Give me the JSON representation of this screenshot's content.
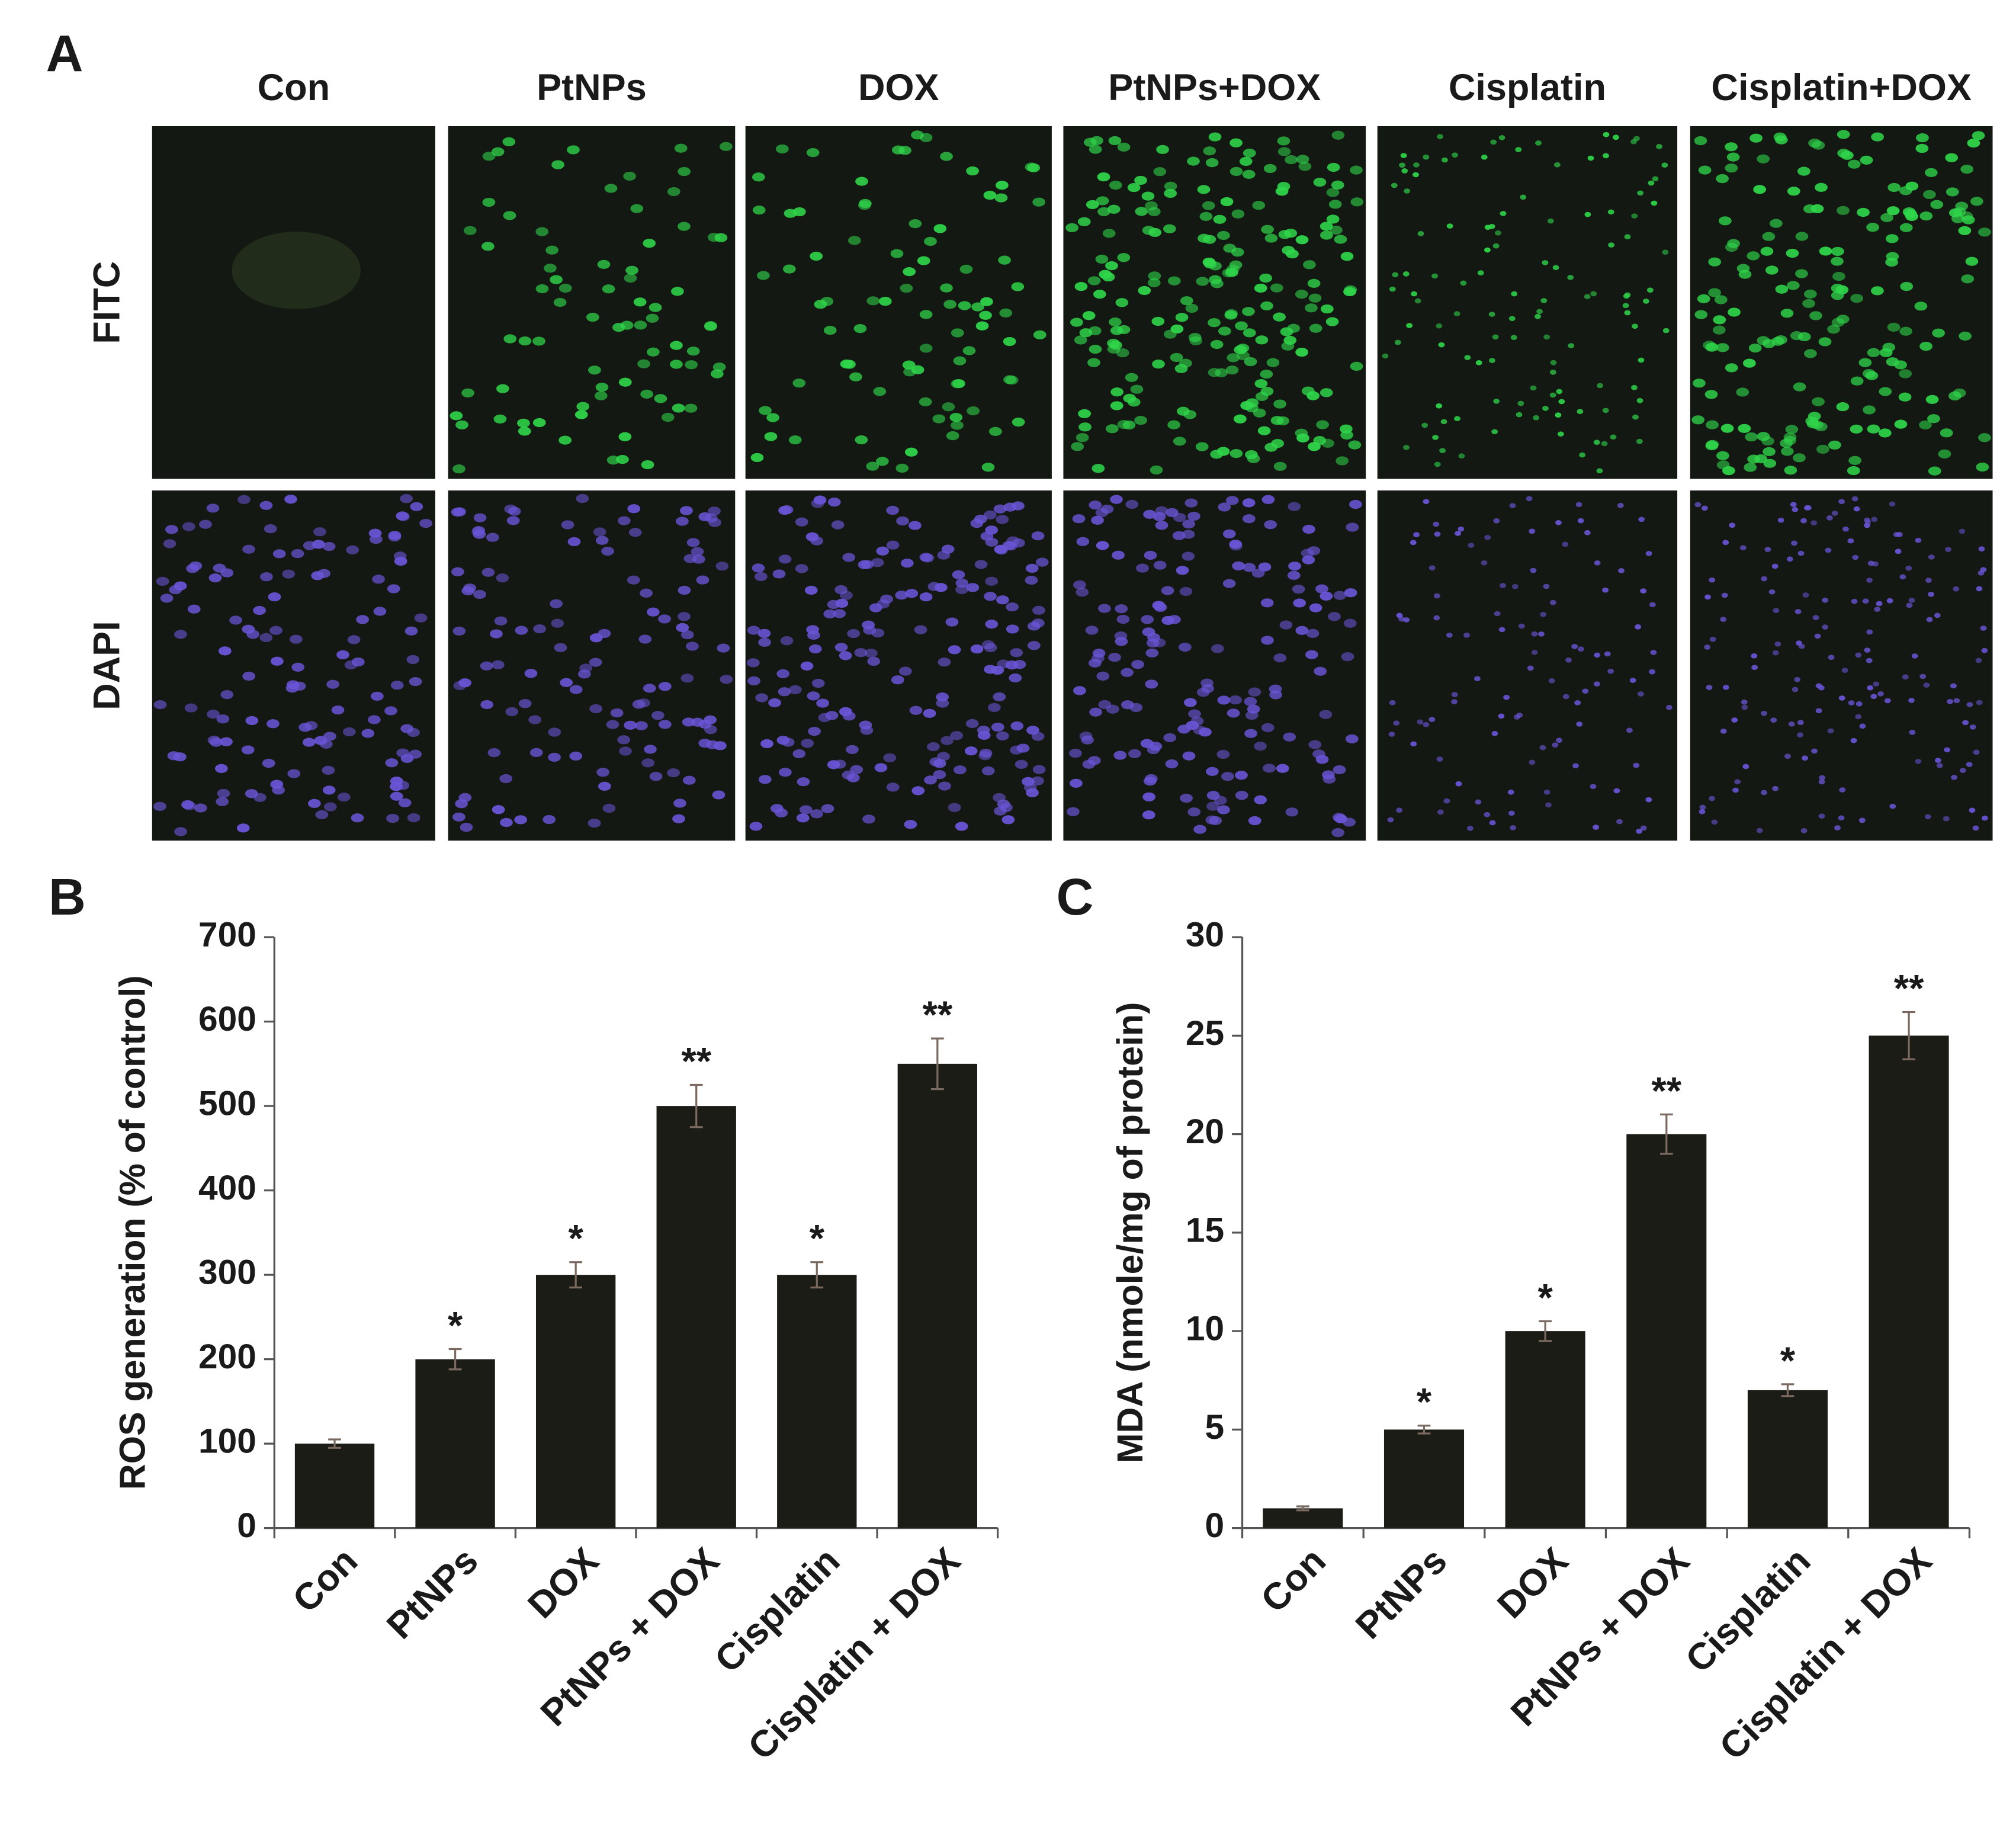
{
  "panel_a": {
    "label": "A",
    "columns": [
      "Con",
      "PtNPs",
      "DOX",
      "PtNPs+DOX",
      "Cisplatin",
      "Cisplatin+DOX"
    ],
    "rows": [
      "FITC",
      "DAPI"
    ]
  },
  "chart_data": [
    {
      "type": "bar",
      "panel_label": "B",
      "y_label": "ROS generation (% of control)",
      "categories": [
        "Con",
        "PtNPs",
        "DOX",
        "PtNPs + DOX",
        "Cisplatin",
        "Cisplatin + DOX"
      ],
      "values": [
        100,
        200,
        300,
        500,
        300,
        550
      ],
      "errors": [
        5,
        12,
        15,
        25,
        15,
        30
      ],
      "annotations": [
        null,
        "*",
        "*",
        "**",
        "*",
        "**"
      ],
      "color": "#1c1c16",
      "error_color": "#7a6a60",
      "ylim": [
        0,
        700
      ],
      "yticks": [
        0,
        100,
        200,
        300,
        400,
        500,
        600,
        700
      ]
    },
    {
      "type": "bar",
      "panel_label": "C",
      "y_label": "MDA (nmole/mg of protein)",
      "categories": [
        "Con",
        "PtNPs",
        "DOX",
        "PtNPs + DOX",
        "Cisplatin",
        "Cisplatin + DOX"
      ],
      "values": [
        1,
        5,
        10,
        20,
        7,
        25
      ],
      "errors": [
        0.1,
        0.2,
        0.5,
        1,
        0.3,
        1.2
      ],
      "annotations": [
        null,
        "*",
        "*",
        "**",
        "*",
        "**"
      ],
      "color": "#1c1c16",
      "error_color": "#7a6a60",
      "ylim": [
        0,
        30
      ],
      "yticks": [
        0,
        5,
        10,
        15,
        20,
        25,
        30
      ]
    }
  ]
}
